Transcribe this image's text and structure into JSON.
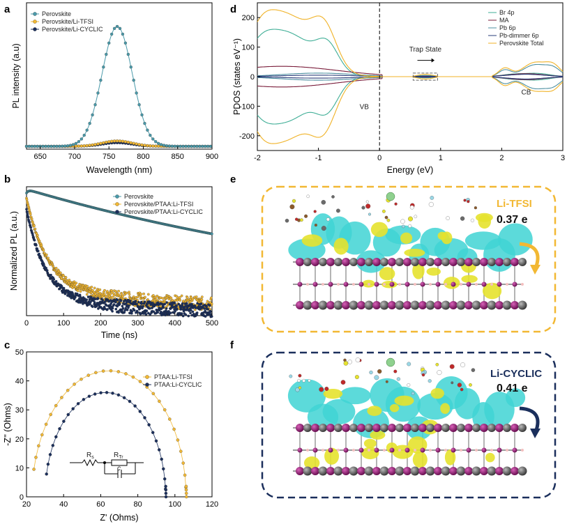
{
  "colors": {
    "perovskite": "#4a9aaa",
    "tfsi": "#f2b833",
    "cyclic": "#1b2f5c",
    "br4p": "#3fae96",
    "ma": "#7a1c3a",
    "pb6p": "#4d8fa0",
    "pbdimmer": "#2a3d7a",
    "total": "#f0b226",
    "iso_cyan": "#3fd4d4",
    "iso_yellow": "#e6e22e",
    "atom_purple": "#8a1a6c",
    "atom_gray": "#555555"
  },
  "panels": {
    "a": "a",
    "b": "b",
    "c": "c",
    "d": "d",
    "e": "e",
    "f": "f"
  },
  "panel_e": {
    "title": "Li-TFSI",
    "value": "0.37 e"
  },
  "panel_f": {
    "title": "Li-CYCLIC",
    "value": "0.41 e"
  },
  "panel_c_circuit": {
    "rs": "R",
    "rs_sub": "s",
    "rtr": "R",
    "rtr_sub": "Tr",
    "cap": "c"
  },
  "chart_data": [
    {
      "id": "a",
      "type": "line",
      "xlabel": "Wavelength (nm)",
      "ylabel": "PL intensity (a.u)",
      "xlim": [
        630,
        900
      ],
      "xticks": [
        650,
        700,
        750,
        800,
        850,
        900
      ],
      "legend_position": "top-left",
      "series": [
        {
          "name": "Perovskite",
          "peak_x": 762,
          "peak_y": 1.0,
          "sigma": 22
        },
        {
          "name": "Perovskite/Li-TFSI",
          "peak_x": 762,
          "peak_y": 0.045,
          "sigma": 22
        },
        {
          "name": "Perovskite/Li-CYCLIC",
          "peak_x": 762,
          "peak_y": 0.03,
          "sigma": 22
        }
      ]
    },
    {
      "id": "b",
      "type": "scatter",
      "xlabel": "Time (ns)",
      "ylabel": "Normalized PL (a.u.)",
      "xlim": [
        0,
        500
      ],
      "xticks": [
        0,
        100,
        200,
        300,
        400,
        500
      ],
      "legend_position": "top-right",
      "series": [
        {
          "name": "Perovskite",
          "y_at_0": 1.0,
          "y_at_500": 0.55
        },
        {
          "name": "Perovskite/PTAA:Li-TFSI",
          "y_at_0": 0.75,
          "y_at_500": 0.13
        },
        {
          "name": "Perovskite/PTAA:Li-CYCLIC",
          "y_at_0": 0.72,
          "y_at_500": 0.08
        }
      ]
    },
    {
      "id": "c",
      "type": "scatter",
      "xlabel": "Z' (Ohms)",
      "ylabel": "-Z'' (Ohms)",
      "xlim": [
        20,
        120
      ],
      "ylim": [
        0,
        50
      ],
      "xticks": [
        20,
        40,
        60,
        80,
        100,
        120
      ],
      "yticks": [
        0,
        10,
        20,
        30,
        40,
        50
      ],
      "legend_position": "top-right",
      "series": [
        {
          "name": "PTAA:Li-TFSI",
          "x_start": 23,
          "x_end": 106,
          "y_max": 43.5
        },
        {
          "name": "PTAA:Li-CYCLIC",
          "x_start": 30,
          "x_end": 95,
          "y_max": 36
        }
      ]
    },
    {
      "id": "d",
      "type": "line",
      "xlabel": "Energy (eV)",
      "ylabel": "PDOS (states eV⁻¹)",
      "xlim": [
        -2,
        3
      ],
      "ylim": [
        -250,
        250
      ],
      "xticks": [
        -2,
        -1,
        0,
        1,
        2,
        3
      ],
      "yticks": [
        -200,
        -100,
        0,
        100,
        200
      ],
      "legend_position": "top-right",
      "series": [
        {
          "name": "Br 4p"
        },
        {
          "name": "MA"
        },
        {
          "name": "Pb 6p"
        },
        {
          "name": "Pb-dimmer 6p"
        },
        {
          "name": "Perovskite Total"
        }
      ],
      "annotations": [
        "VB",
        "Trap State",
        "CB"
      ]
    }
  ]
}
